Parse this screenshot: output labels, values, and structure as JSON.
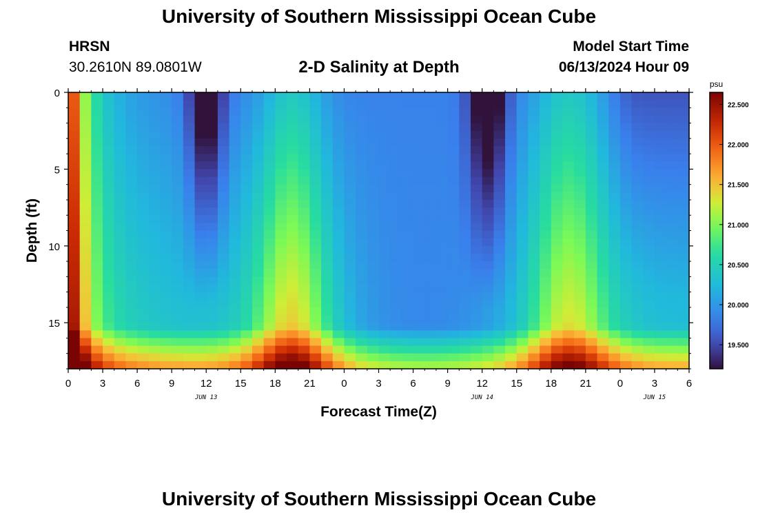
{
  "page": {
    "title_top": "University of Southern Mississippi Ocean Cube",
    "title_bottom": "University of Southern Mississippi Ocean Cube",
    "station": "HRSN",
    "coords": "30.2610N  89.0801W",
    "subtitle": "2-D Salinity at Depth",
    "model_start_label": "Model Start Time",
    "model_start_value": "06/13/2024 Hour 09"
  },
  "chart_data": {
    "type": "heatmap",
    "title": "2-D Salinity at Depth",
    "xlabel": "Forecast Time(Z)",
    "ylabel": "Depth (ft)",
    "x_ticks": [
      "0",
      "3",
      "6",
      "9",
      "12",
      "15",
      "18",
      "21",
      "0",
      "3",
      "6",
      "9",
      "12",
      "15",
      "18",
      "21",
      "0",
      "3",
      "6"
    ],
    "x_range_hours": [
      0,
      54
    ],
    "day_labels": [
      {
        "label": "JUN 13",
        "hour": 12
      },
      {
        "label": "JUN 14",
        "hour": 36
      },
      {
        "label": "JUN 15",
        "hour": 51
      }
    ],
    "y_ticks": [
      0,
      5,
      10,
      15
    ],
    "ylim": [
      0,
      18
    ],
    "y_inverted": true,
    "colorbar": {
      "unit": "psu",
      "min": 19.2,
      "max": 22.65,
      "ticks": [
        {
          "value": 22.5,
          "label": "22.500"
        },
        {
          "value": 22.0,
          "label": "22.000"
        },
        {
          "value": 21.5,
          "label": "21.500"
        },
        {
          "value": 21.0,
          "label": "21.000"
        },
        {
          "value": 20.5,
          "label": "20.500"
        },
        {
          "value": 20.0,
          "label": "20.000"
        },
        {
          "value": 19.5,
          "label": "19.500"
        }
      ]
    },
    "grid": {
      "hours_step": 1,
      "depth_step_ft": 0.5,
      "description": "salinity field sampled hourly over depth"
    }
  }
}
